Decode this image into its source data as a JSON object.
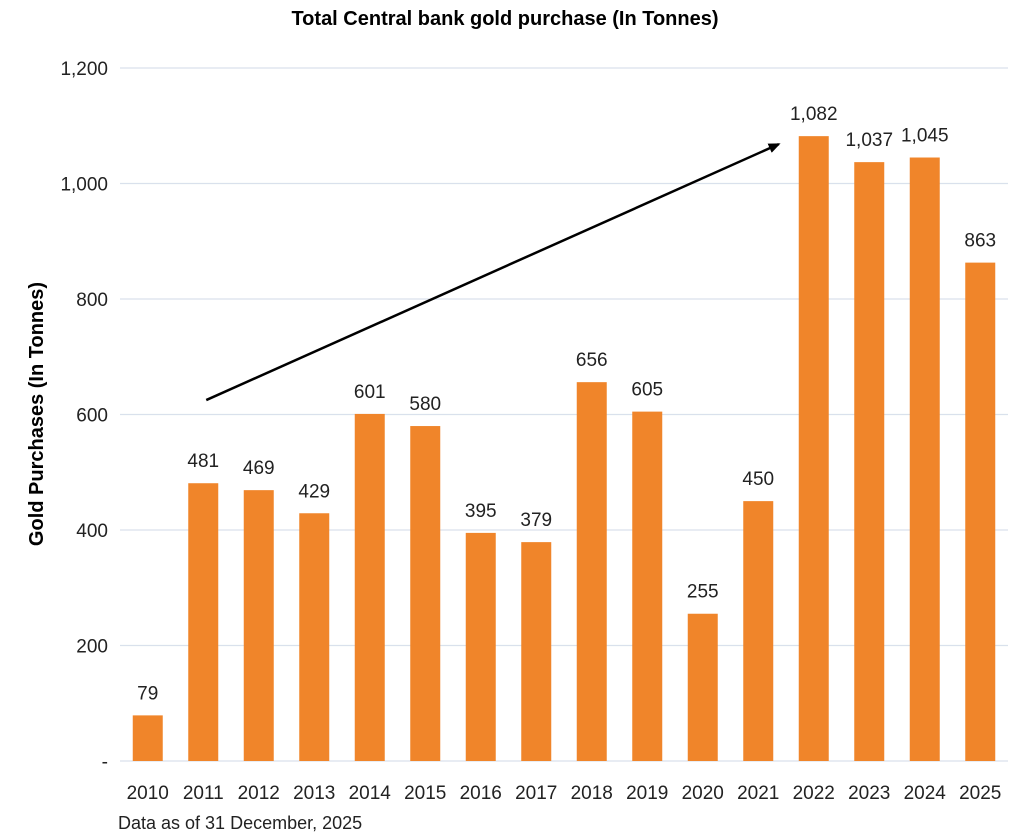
{
  "chart_data": {
    "type": "bar",
    "title": "Total Central bank gold purchase (In Tonnes)",
    "xlabel": "",
    "ylabel": "Gold Purchases (In Tonnes)",
    "categories": [
      "2010",
      "2011",
      "2012",
      "2013",
      "2014",
      "2015",
      "2016",
      "2017",
      "2018",
      "2019",
      "2020",
      "2021",
      "2022",
      "2023",
      "2024",
      "2025"
    ],
    "values": [
      79,
      481,
      469,
      429,
      601,
      580,
      395,
      379,
      656,
      605,
      255,
      450,
      1082,
      1037,
      1045,
      863
    ],
    "data_labels": [
      "79",
      "481",
      "469",
      "429",
      "601",
      "580",
      "395",
      "379",
      "656",
      "605",
      "255",
      "450",
      "1,082",
      "1,037",
      "1,045",
      "863"
    ],
    "ylim": [
      0,
      1200
    ],
    "yticks": [
      0,
      200,
      400,
      600,
      800,
      1000,
      1200
    ],
    "ytick_labels": [
      "-",
      "200",
      "400",
      "600",
      "800",
      "1,000",
      "1,200"
    ],
    "grid": true,
    "legend": "none",
    "bar_color": "#f0852a",
    "annotation": {
      "type": "arrow",
      "from": {
        "category": "2011",
        "value": 625
      },
      "to": {
        "category": "2022",
        "value": 1082
      }
    }
  },
  "footnote": "Data as of 31 December, 2025"
}
